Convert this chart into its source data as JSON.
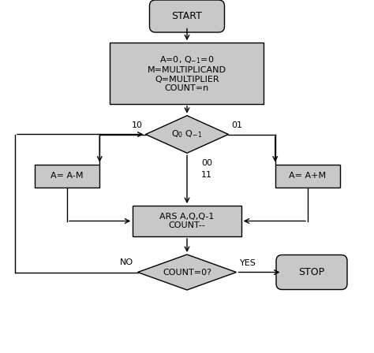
{
  "bg_color": "#ffffff",
  "shape_fill": "#c8c8c8",
  "shape_edge": "#000000",
  "line_color": "#000000",
  "start_label": "START",
  "box1_lines": [
    "A=0, Q$_{-1}$=0",
    "M=MULTIPLICAND",
    "Q=MULTIPLIER",
    "COUNT=n"
  ],
  "diamond1_label": "Q$_0$ Q$_{-1}$",
  "left_box_label": "A= A-M",
  "right_box_label": "A= A+M",
  "box2_lines": [
    "ARS A,Q,Q-1",
    "COUNT--"
  ],
  "diamond2_label": "COUNT=0?",
  "stop_label": "STOP",
  "label_10": "10",
  "label_01": "01",
  "label_00": "00",
  "label_11": "11",
  "label_no": "NO",
  "label_yes": "YES",
  "xlim": [
    0,
    9.48
  ],
  "ylim": [
    0,
    8.96
  ]
}
